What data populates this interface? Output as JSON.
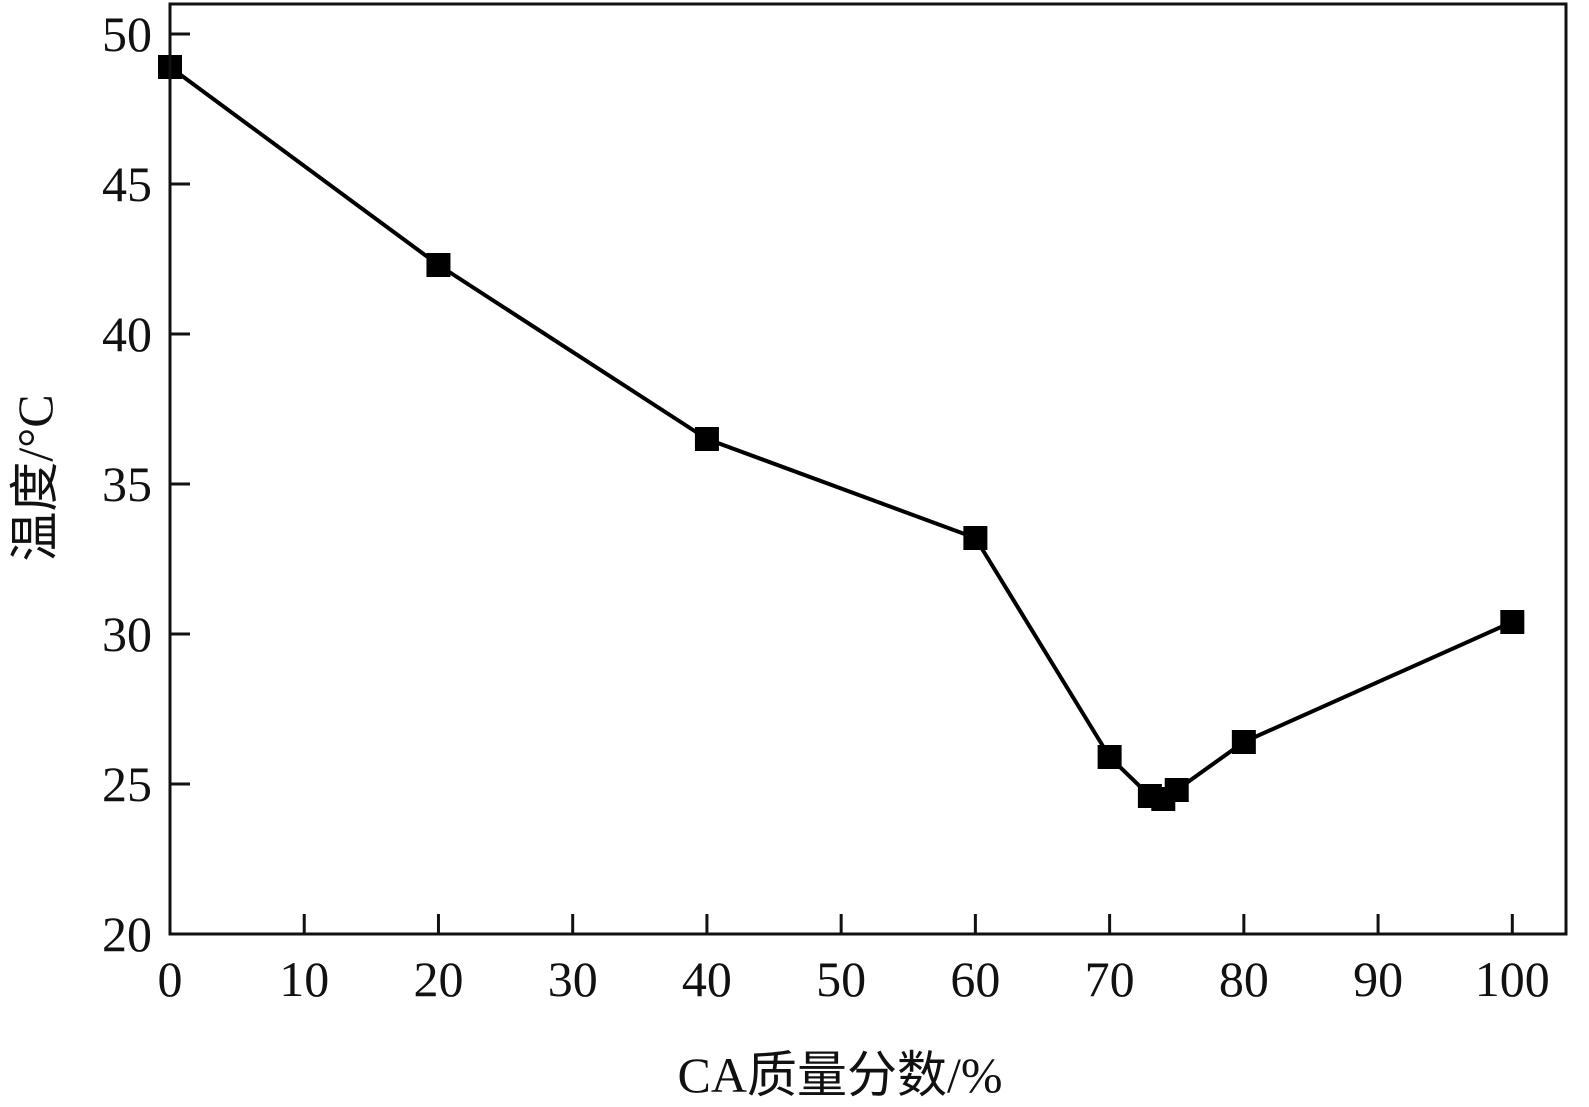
{
  "chart_data": {
    "type": "line",
    "title": "",
    "xlabel": "CA质量分数/%",
    "ylabel": "温度/°C",
    "xlim": [
      0,
      104
    ],
    "ylim": [
      20,
      51
    ],
    "x_ticks": [
      0,
      10,
      20,
      30,
      40,
      50,
      60,
      70,
      80,
      90,
      100
    ],
    "y_ticks": [
      20,
      25,
      30,
      35,
      40,
      45,
      50
    ],
    "x_tick_labels": [
      "0",
      "10",
      "20",
      "30",
      "40",
      "50",
      "60",
      "70",
      "80",
      "90",
      "100"
    ],
    "y_tick_labels": [
      "20",
      "25",
      "30",
      "35",
      "40",
      "45",
      "50"
    ],
    "grid": false,
    "legend": "none",
    "series": [
      {
        "marker": "square",
        "color": "#000000",
        "x": [
          0,
          20,
          40,
          60,
          70,
          73,
          74,
          75,
          80,
          100
        ],
        "y": [
          48.9,
          42.3,
          36.5,
          33.2,
          25.9,
          24.6,
          24.5,
          24.8,
          26.4,
          30.4
        ]
      }
    ]
  }
}
